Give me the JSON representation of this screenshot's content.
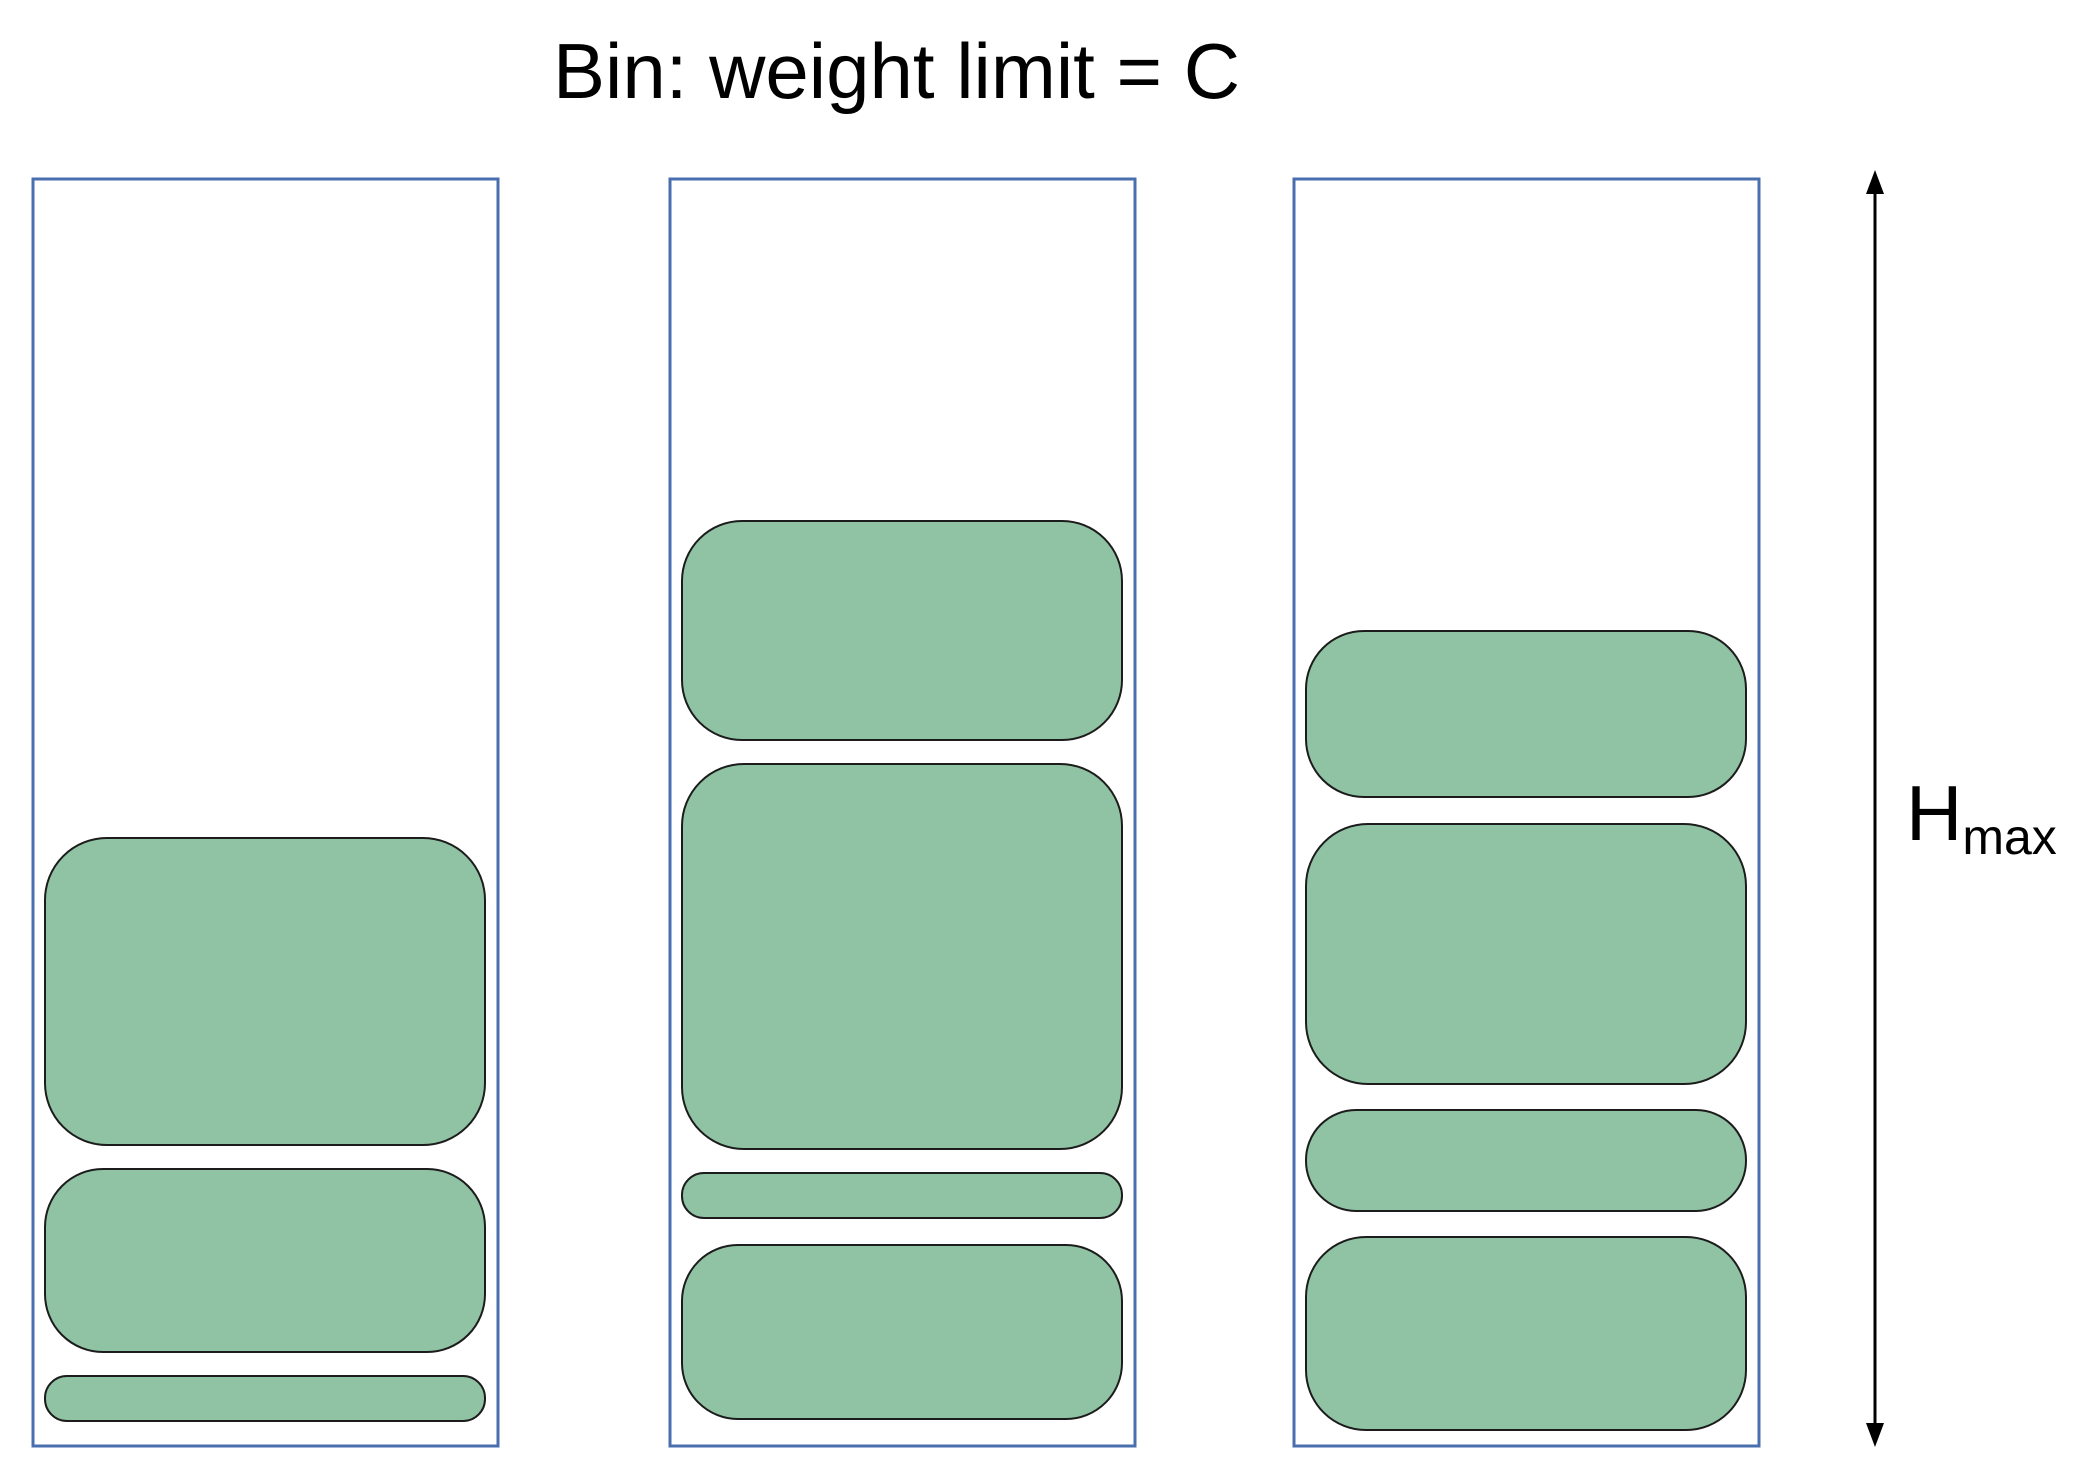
{
  "title": "Bin: weight limit = C",
  "height_label": {
    "main": "H",
    "subscript": "max"
  },
  "colors": {
    "bin_border": "#4a6faf",
    "item_fill": "#8fc3a3",
    "item_stroke": "#1c1c1c",
    "arrow": "#000000",
    "text": "#000000"
  },
  "bins": [
    {
      "name": "bin-1",
      "item_count": 3
    },
    {
      "name": "bin-2",
      "item_count": 4
    },
    {
      "name": "bin-3",
      "item_count": 4
    }
  ]
}
